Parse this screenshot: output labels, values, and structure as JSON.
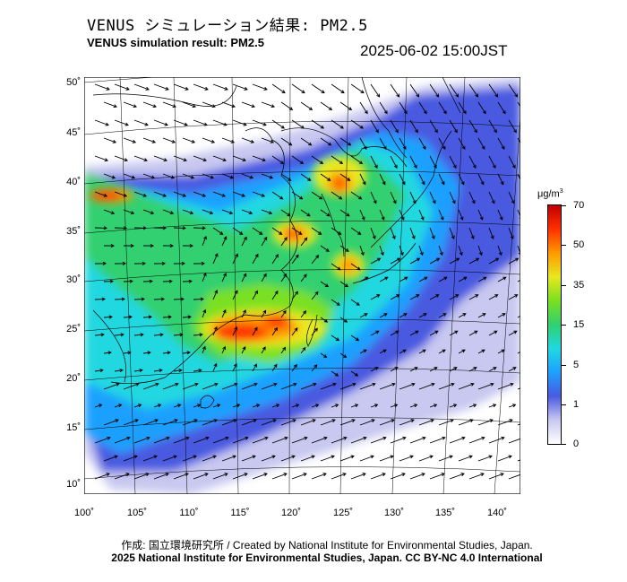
{
  "header": {
    "title_jp": "VENUS シミュレーション結果: PM2.5",
    "title_en": "VENUS simulation result: PM2.5",
    "timestamp": "2025-06-02 15:00JST"
  },
  "map": {
    "lat_labels": [
      "50˚",
      "45˚",
      "40˚",
      "35˚",
      "30˚",
      "25˚",
      "20˚",
      "15˚",
      "10˚"
    ],
    "lon_labels": [
      "100˚",
      "105˚",
      "110˚",
      "115˚",
      "120˚",
      "125˚",
      "130˚",
      "135˚",
      "140˚"
    ],
    "lat_range": [
      9,
      50
    ],
    "lon_range": [
      100,
      141
    ],
    "field": "PM2.5 concentration",
    "overlay": "wind vectors"
  },
  "legend": {
    "unit": "μg/m",
    "unit_sup": "3",
    "ticks": [
      "70",
      "50",
      "35",
      "15",
      "5",
      "1",
      "0"
    ],
    "colors": [
      "#ffffff",
      "#c8c8f0",
      "#4a5ae0",
      "#1ea0ff",
      "#20d8e0",
      "#30d070",
      "#7ae020",
      "#e8e820",
      "#ff9a00",
      "#ff3000",
      "#c00000"
    ]
  },
  "footer": {
    "credit": "作成: 国立環境研究所 / Created by National Institute for Environmental Studies, Japan.",
    "license": "2025 National Institute for Environmental Studies, Japan. CC BY-NC 4.0 International"
  }
}
